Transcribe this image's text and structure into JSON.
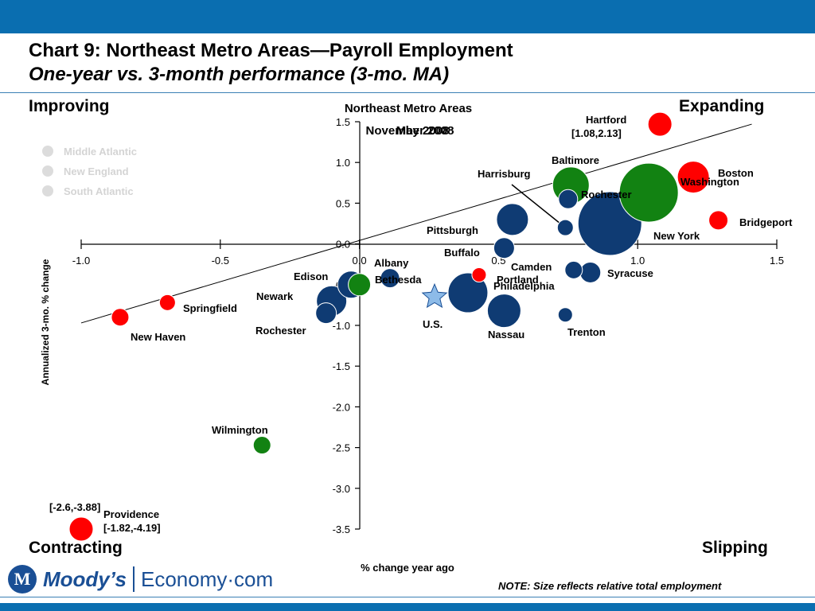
{
  "header": {
    "title": "Chart 9: Northeast Metro Areas—Payroll Employment",
    "subtitle": "One-year vs. 3-month performance (3-mo. MA)"
  },
  "quadrants": {
    "top_left": "Improving",
    "top_right": "Expanding",
    "bottom_left": "Contracting",
    "bottom_right": "Slipping"
  },
  "footer": {
    "brand": "Moody’s",
    "product": "Economy·com",
    "note": "NOTE: Size reflects relative total employment"
  },
  "colors": {
    "middle_atlantic": "#0f3b73",
    "new_england": "#ff0000",
    "south_atlantic": "#128212",
    "bar": "#0a6eb0"
  },
  "chart_data": {
    "type": "scatter",
    "title": "Northeast Metro Areas",
    "date_labels": [
      "November 2008",
      "May 2008"
    ],
    "xlabel": "% change year ago",
    "ylabel": "Annualized 3-mo. % change",
    "xlim": [
      -1.0,
      1.5
    ],
    "ylim": [
      -3.5,
      1.5
    ],
    "xticks": [
      "-1.0",
      "-0.5",
      "0.0",
      "0.5",
      "1.0",
      "1.5"
    ],
    "yticks": [
      "1.5",
      "1.0",
      "0.5",
      "0.0",
      "-0.5",
      "-1.0",
      "-1.5",
      "-2.0",
      "-2.5",
      "-3.0",
      "-3.5"
    ],
    "legend": [
      "Middle Atlantic",
      "New England",
      "South Atlantic"
    ],
    "trend_line": [
      [
        -1.0,
        -0.97
      ],
      [
        1.41,
        1.47
      ]
    ],
    "series": [
      {
        "name": "Middle Atlantic",
        "color": "#0f3b73",
        "points": [
          {
            "label": "New York",
            "x": 0.9,
            "y": 0.25,
            "size": 40
          },
          {
            "label": "Pittsburgh",
            "x": 0.55,
            "y": 0.3,
            "size": 20
          },
          {
            "label": "Harrisburg",
            "x": 0.74,
            "y": 0.2,
            "size": 10
          },
          {
            "label": "Buffalo",
            "x": 0.52,
            "y": -0.05,
            "size": 13
          },
          {
            "label": "Rochester",
            "x": 0.75,
            "y": 0.55,
            "size": 12
          },
          {
            "label": "Camden",
            "x": 0.77,
            "y": -0.32,
            "size": 11
          },
          {
            "label": "Syracuse",
            "x": 0.83,
            "y": -0.35,
            "size": 13
          },
          {
            "label": "Philadelphia",
            "x": 0.39,
            "y": -0.6,
            "size": 25
          },
          {
            "label": "Nassau",
            "x": 0.52,
            "y": -0.82,
            "size": 21
          },
          {
            "label": "Trenton",
            "x": 0.74,
            "y": -0.87,
            "size": 9
          },
          {
            "label": "Albany",
            "x": 0.11,
            "y": -0.42,
            "size": 12
          },
          {
            "label": "Edison",
            "x": -0.03,
            "y": -0.5,
            "size": 17
          },
          {
            "label": "Newark",
            "x": -0.1,
            "y": -0.7,
            "size": 19
          },
          {
            "label": "Rochester",
            "x": -0.12,
            "y": -0.85,
            "size": 13
          }
        ]
      },
      {
        "name": "New England",
        "color": "#ff0000",
        "points": [
          {
            "label": "Hartford",
            "x": 1.08,
            "y": 1.47,
            "size": 15,
            "note": "[1.08,2.13]"
          },
          {
            "label": "Boston",
            "x": 1.2,
            "y": 0.82,
            "size": 20
          },
          {
            "label": "Bridgeport",
            "x": 1.29,
            "y": 0.29,
            "size": 12
          },
          {
            "label": "Portland",
            "x": 0.43,
            "y": -0.38,
            "size": 9
          },
          {
            "label": "Springfield",
            "x": -0.69,
            "y": -0.72,
            "size": 10
          },
          {
            "label": "New Haven",
            "x": -0.86,
            "y": -0.9,
            "size": 11
          },
          {
            "label": "Providence",
            "x": -1.0,
            "y": -3.5,
            "size": 15,
            "note": "[-1.82,-4.19]"
          }
        ]
      },
      {
        "name": "South Atlantic",
        "color": "#128212",
        "points": [
          {
            "label": "Washington",
            "x": 1.04,
            "y": 0.63,
            "size": 37
          },
          {
            "label": "Baltimore",
            "x": 0.76,
            "y": 0.72,
            "size": 23
          },
          {
            "label": "Bethesda",
            "x": 0.0,
            "y": -0.5,
            "size": 14
          },
          {
            "label": "Wilmington",
            "x": -0.35,
            "y": -2.47,
            "size": 11
          }
        ]
      },
      {
        "name": "U.S.",
        "marker": "star",
        "color": "#8dbbe8",
        "points": [
          {
            "label": "U.S.",
            "x": 0.27,
            "y": -0.65,
            "size": 16
          }
        ]
      }
    ],
    "annotations": [
      {
        "text": "[-2.6,-3.88]"
      }
    ]
  }
}
